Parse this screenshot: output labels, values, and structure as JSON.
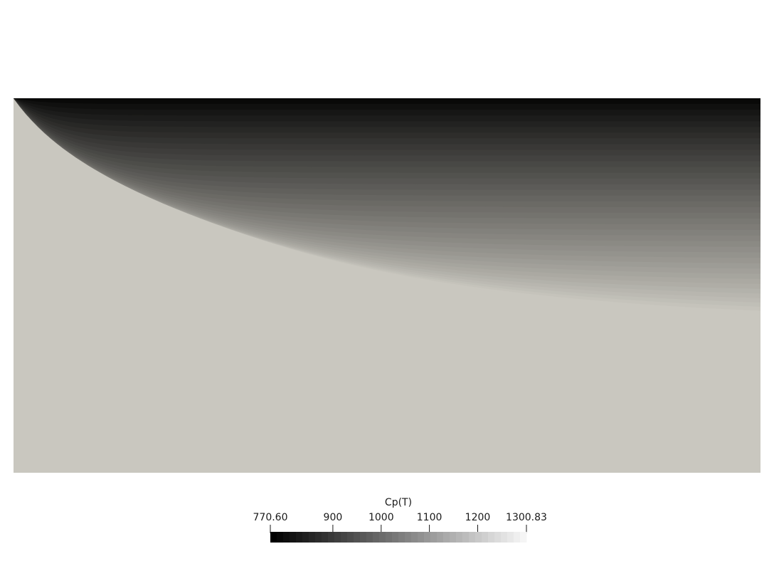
{
  "colorbar": {
    "title": "Cp(T)",
    "min_label": "770.60",
    "max_label": "1300.83",
    "range": [
      770.6,
      1300.83
    ],
    "ticks": [
      {
        "value": 770.6,
        "label": "770.60"
      },
      {
        "value": 900,
        "label": "900"
      },
      {
        "value": 1000,
        "label": "1000"
      },
      {
        "value": 1100,
        "label": "1100"
      },
      {
        "value": 1200,
        "label": "1200"
      },
      {
        "value": 1300.83,
        "label": "1300.83"
      }
    ],
    "band_count": 40,
    "color_low": "#000000",
    "color_high": "#f5f5f5"
  },
  "field": {
    "background": "#ffffff",
    "plate_color": "#c9c7bf",
    "edge_color": "#000000"
  }
}
